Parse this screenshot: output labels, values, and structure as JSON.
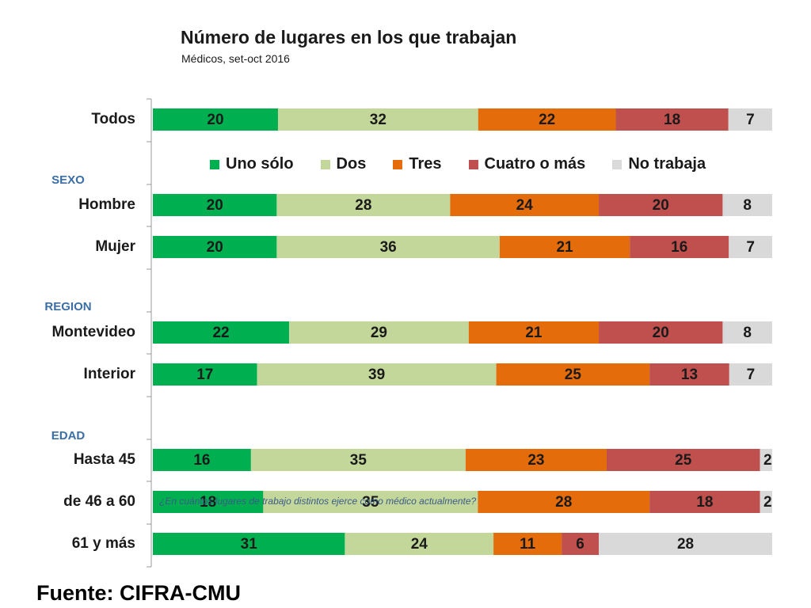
{
  "title": "Número de lugares en los que trabajan",
  "subtitle": "Médicos, set-oct 2016",
  "source": "Fuente: CIFRA-CMU",
  "question": "¿En cuántos lugares de trabajo distintos ejerce como médico actualmente?",
  "chart_data": {
    "type": "bar",
    "orientation": "horizontal",
    "stacked": true,
    "title": "Número de lugares en los que trabajan",
    "subtitle": "Médicos, set-oct 2016",
    "xlabel": "",
    "ylabel": "",
    "legend_position": "top",
    "groups": [
      "SEXO",
      "REGION",
      "EDAD"
    ],
    "categories": [
      "Todos",
      "Hombre",
      "Mujer",
      "Montevideo",
      "Interior",
      "Hasta 45",
      "de 46 a 60",
      "61 y más"
    ],
    "category_group": [
      "",
      "SEXO",
      "SEXO",
      "REGION",
      "REGION",
      "EDAD",
      "EDAD",
      "EDAD"
    ],
    "series": [
      {
        "name": "Uno sólo",
        "color": "#00b050",
        "values": [
          20,
          20,
          20,
          22,
          17,
          16,
          18,
          31
        ]
      },
      {
        "name": "Dos",
        "color": "#c4d79b",
        "values": [
          32,
          28,
          36,
          29,
          39,
          35,
          35,
          24
        ]
      },
      {
        "name": "Tres",
        "color": "#e46c0a",
        "values": [
          22,
          24,
          21,
          21,
          25,
          23,
          28,
          11
        ]
      },
      {
        "name": "Cuatro o más",
        "color": "#c0504d",
        "values": [
          18,
          20,
          16,
          20,
          13,
          25,
          18,
          6
        ]
      },
      {
        "name": "No trabaja",
        "color": "#d9d9d9",
        "values": [
          7,
          8,
          7,
          8,
          7,
          2,
          2,
          28
        ]
      }
    ]
  }
}
